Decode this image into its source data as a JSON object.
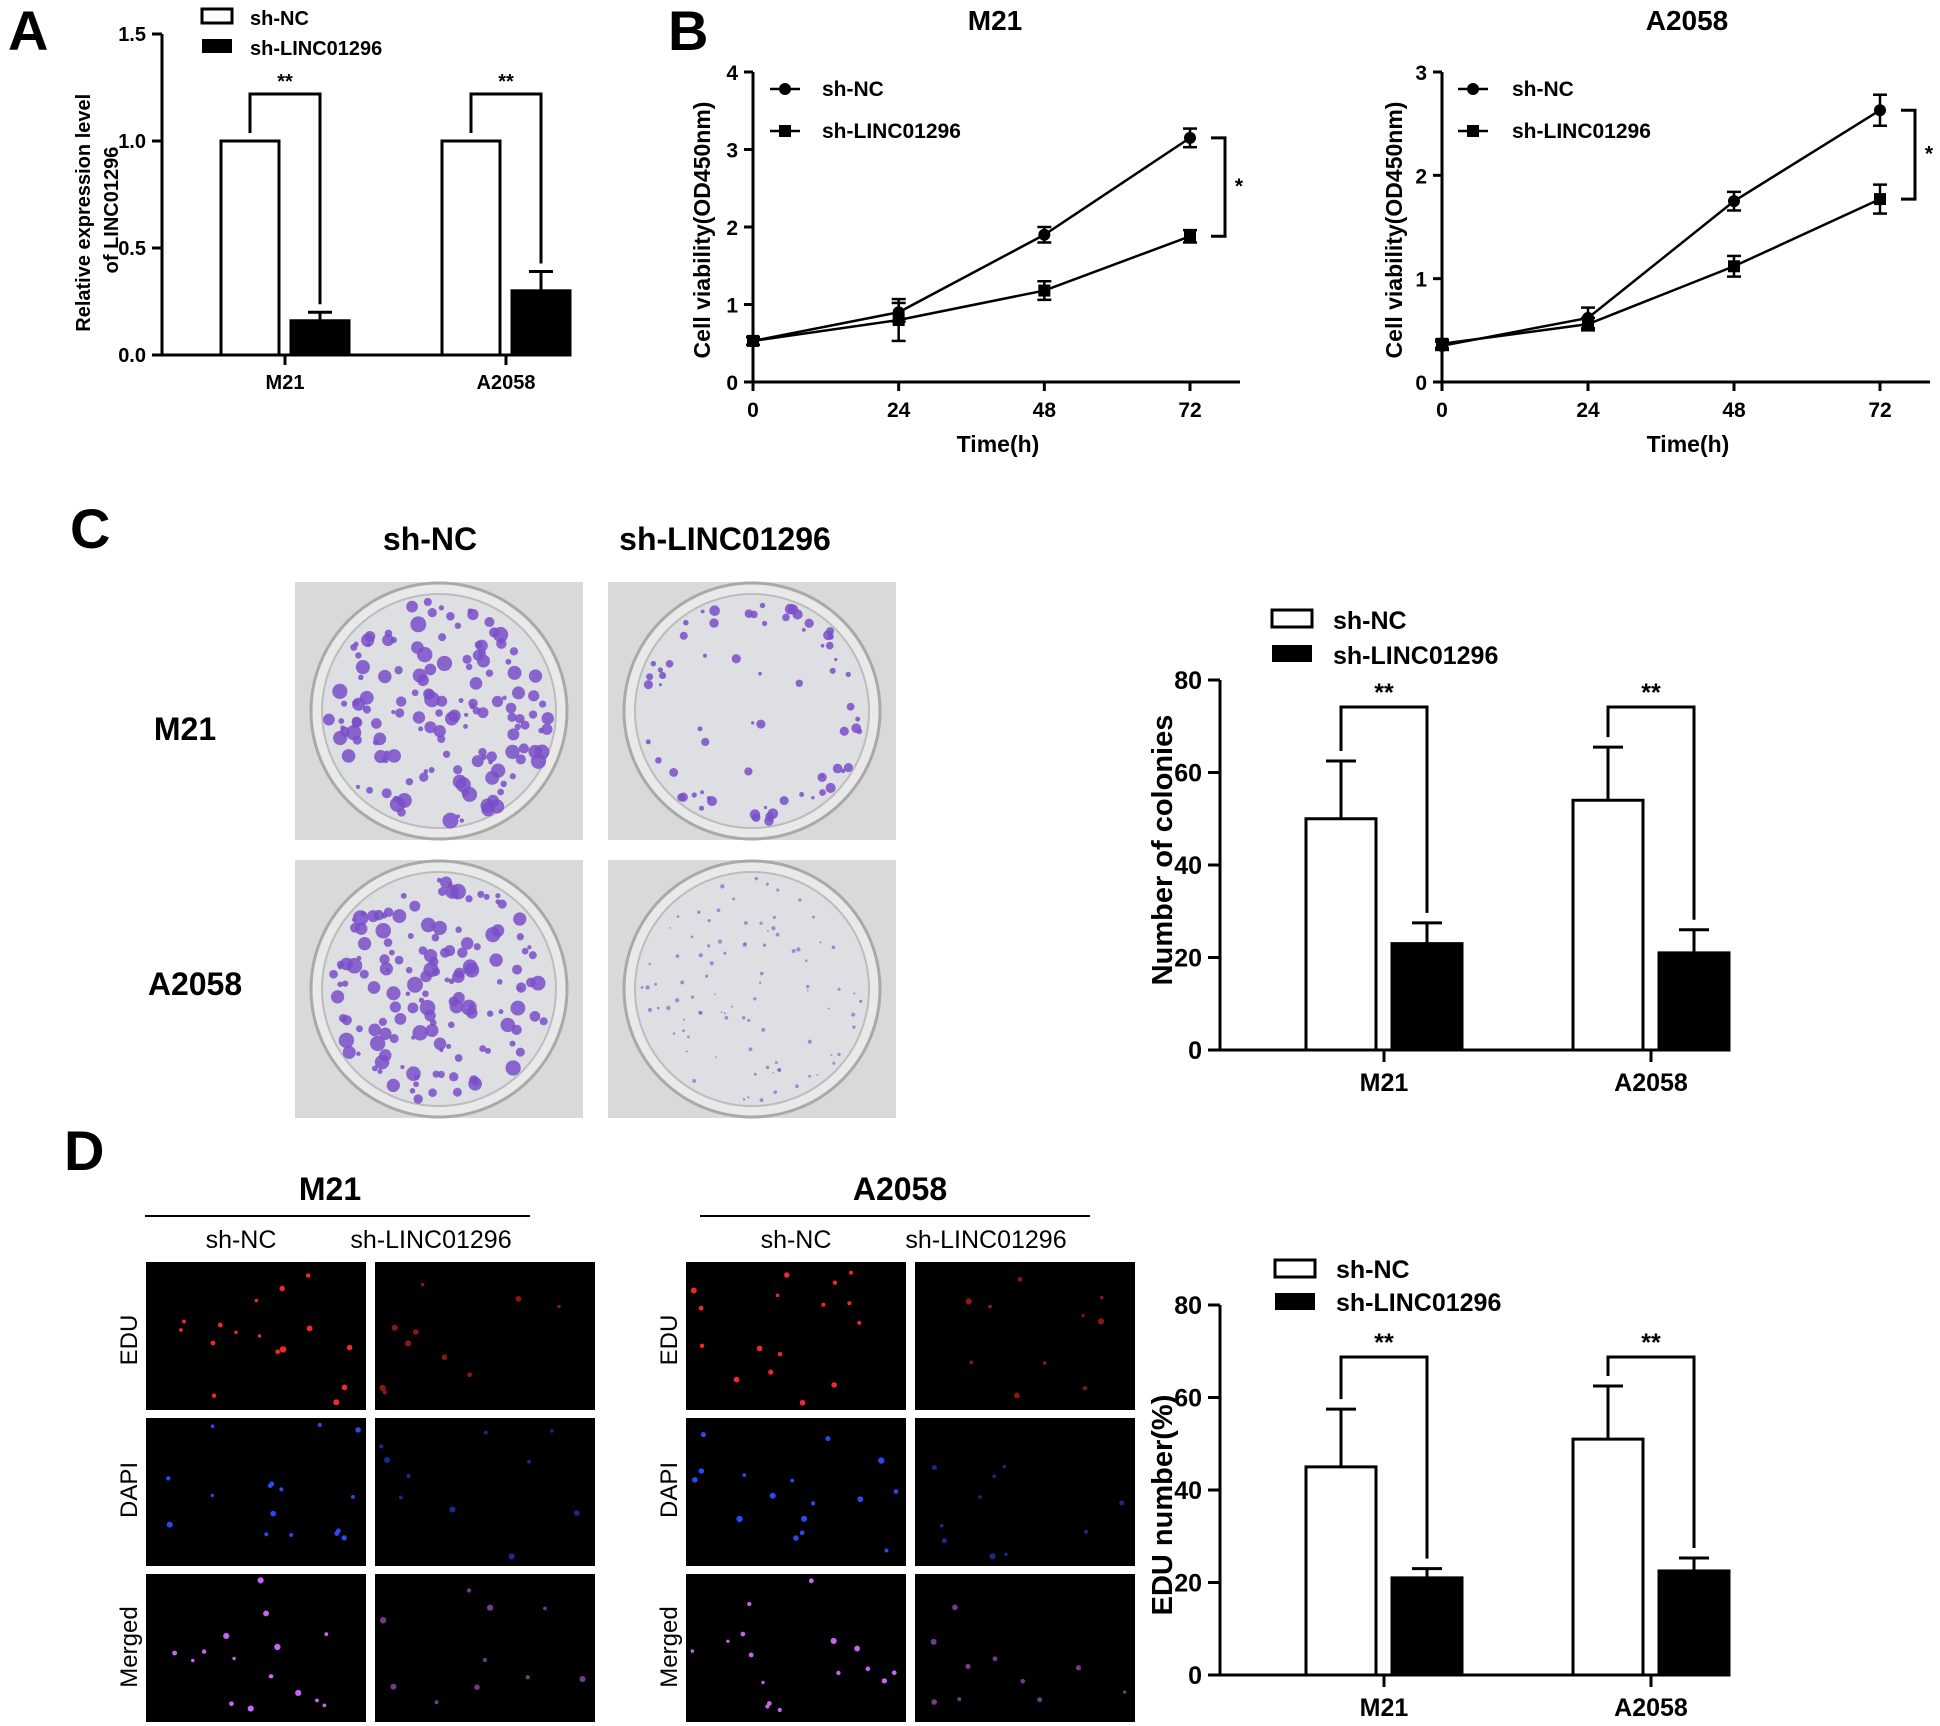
{
  "panel_labels": {
    "a": "A",
    "b": "B",
    "c": "C",
    "d": "D"
  },
  "legend": {
    "control": "sh-NC",
    "knockdown": "sh-LINC01296"
  },
  "colors": {
    "control_fill": "#ffffff",
    "knockdown_fill": "#000000",
    "stain": "#7a4fc9",
    "edu": "#ff2a2a",
    "dapi": "#2b4dff",
    "merged": "#d06bff"
  },
  "panel_a": {
    "ylabel_line1": "Relative expression level",
    "ylabel_line2": "of LINC01296",
    "significance": [
      "**",
      "**"
    ]
  },
  "panel_b": {
    "titles": [
      "M21",
      "A2058"
    ],
    "xlabel": "Time(h)",
    "ylabel": "Cell viability(OD450nm)",
    "significance": [
      "*",
      "*"
    ]
  },
  "panel_c": {
    "columns": [
      "sh-NC",
      "sh-LINC01296"
    ],
    "rows": [
      "M21",
      "A2058"
    ],
    "ylabel": "Number of colonies",
    "significance": [
      "**",
      "**"
    ]
  },
  "panel_d": {
    "groups": [
      "M21",
      "A2058"
    ],
    "columns": [
      "sh-NC",
      "sh-LINC01296"
    ],
    "rows": [
      "EDU",
      "DAPI",
      "Merged"
    ],
    "ylabel": "EDU number(%)",
    "significance": [
      "**",
      "**"
    ]
  },
  "chart_data": [
    {
      "type": "bar",
      "id": "A",
      "categories": [
        "M21",
        "A2058"
      ],
      "series": [
        {
          "name": "sh-NC",
          "values": [
            1.0,
            1.0
          ],
          "errors": [
            0,
            0
          ]
        },
        {
          "name": "sh-LINC01296",
          "values": [
            0.16,
            0.3
          ],
          "errors": [
            0.04,
            0.09
          ]
        }
      ],
      "ylabel": "Relative expression level of LINC01296",
      "ylim": [
        0,
        1.5
      ],
      "yticks": [
        0.0,
        0.5,
        1.0,
        1.5
      ],
      "ytick_labels": [
        "0.0",
        "0.5",
        "1.0",
        "1.5"
      ]
    },
    {
      "type": "line",
      "id": "B-M21",
      "title": "M21",
      "x": [
        0,
        24,
        48,
        72
      ],
      "series": [
        {
          "name": "sh-NC",
          "values": [
            0.53,
            0.9,
            1.9,
            3.15
          ],
          "errors": [
            0.05,
            0.12,
            0.1,
            0.12
          ]
        },
        {
          "name": "sh-LINC01296",
          "values": [
            0.53,
            0.8,
            1.18,
            1.88
          ],
          "errors": [
            0.05,
            0.27,
            0.12,
            0.08
          ]
        }
      ],
      "xlabel": "Time(h)",
      "ylabel": "Cell viability(OD450nm)",
      "xlim": [
        0,
        72
      ],
      "ylim": [
        0,
        4
      ],
      "xticks": [
        0,
        24,
        48,
        72
      ],
      "yticks": [
        0,
        1,
        2,
        3,
        4
      ]
    },
    {
      "type": "line",
      "id": "B-A2058",
      "title": "A2058",
      "x": [
        0,
        24,
        48,
        72
      ],
      "series": [
        {
          "name": "sh-NC",
          "values": [
            0.35,
            0.62,
            1.75,
            2.63
          ],
          "errors": [
            0.04,
            0.1,
            0.09,
            0.15
          ]
        },
        {
          "name": "sh-LINC01296",
          "values": [
            0.37,
            0.56,
            1.12,
            1.77
          ],
          "errors": [
            0.04,
            0.06,
            0.1,
            0.14
          ]
        }
      ],
      "xlabel": "Time(h)",
      "ylabel": "Cell viability(OD450nm)",
      "xlim": [
        0,
        72
      ],
      "ylim": [
        0,
        3
      ],
      "xticks": [
        0,
        24,
        48,
        72
      ],
      "yticks": [
        0,
        1,
        2,
        3
      ]
    },
    {
      "type": "bar",
      "id": "C",
      "categories": [
        "M21",
        "A2058"
      ],
      "series": [
        {
          "name": "sh-NC",
          "values": [
            50,
            54
          ],
          "errors": [
            12.5,
            11.5
          ]
        },
        {
          "name": "sh-LINC01296",
          "values": [
            23,
            21
          ],
          "errors": [
            4.5,
            5
          ]
        }
      ],
      "ylabel": "Number of colonies",
      "ylim": [
        0,
        80
      ],
      "yticks": [
        0,
        20,
        40,
        60,
        80
      ]
    },
    {
      "type": "bar",
      "id": "D",
      "categories": [
        "M21",
        "A2058"
      ],
      "series": [
        {
          "name": "sh-NC",
          "values": [
            45,
            51
          ],
          "errors": [
            12.5,
            11.5
          ]
        },
        {
          "name": "sh-LINC01296",
          "values": [
            21,
            22.5
          ],
          "errors": [
            2,
            2.8
          ]
        }
      ],
      "ylabel": "EDU number(%)",
      "ylim": [
        0,
        80
      ],
      "yticks": [
        0,
        20,
        40,
        60,
        80
      ]
    }
  ]
}
